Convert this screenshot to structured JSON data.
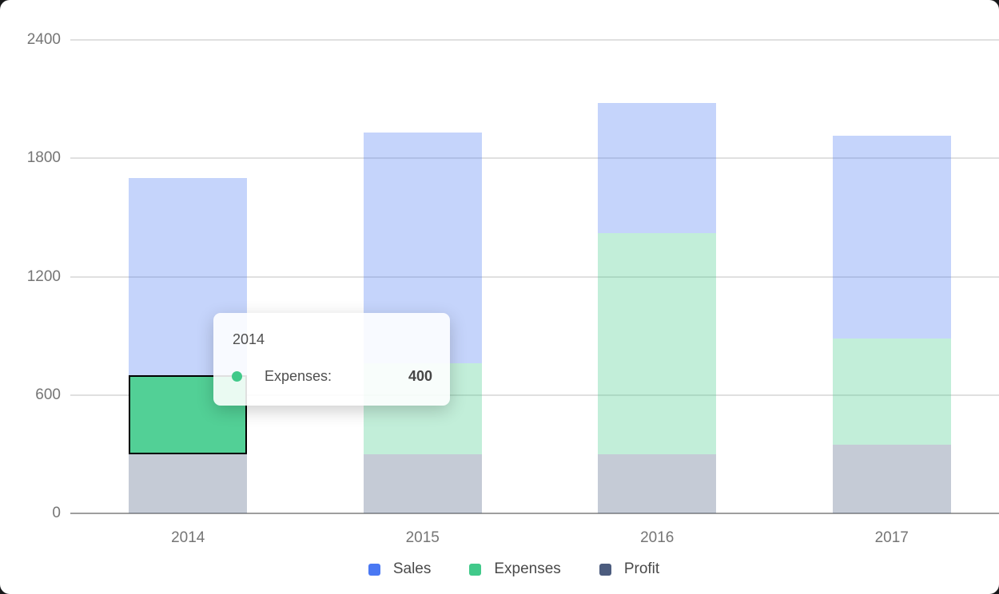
{
  "canvas": {
    "outside_background": "#17181a",
    "card_background": "#ffffff"
  },
  "chart_data": {
    "type": "bar",
    "stacked": true,
    "title": "",
    "xlabel": "",
    "ylabel": "",
    "categories": [
      "2014",
      "2015",
      "2016",
      "2017"
    ],
    "series": [
      {
        "name": "Sales",
        "color": "#4a78f3",
        "values": [
          1000,
          1170,
          660,
          1030
        ]
      },
      {
        "name": "Expenses",
        "color": "#41c98a",
        "values": [
          400,
          460,
          1120,
          540
        ]
      },
      {
        "name": "Profit",
        "color": "#4c5c7e",
        "values": [
          300,
          300,
          300,
          350
        ]
      }
    ],
    "stack_order_bottom_to_top": [
      "Profit",
      "Expenses",
      "Sales"
    ],
    "ylim": [
      0,
      2400
    ],
    "yticks": [
      0,
      600,
      1200,
      1800,
      2400
    ],
    "grid": true,
    "grid_color": "#e0e0e0",
    "axis_line_color": "#9e9e9e",
    "axis_label_color": "#757575",
    "fill_opacity": 0.32,
    "legend_position": "bottom",
    "emphasis": {
      "category": "2014",
      "series": "Expenses",
      "fill": "#52d096",
      "border_color": "#000000"
    }
  },
  "tooltip": {
    "title": "2014",
    "label": "Expenses:",
    "value": "400",
    "marker_color": "#41c98a"
  },
  "legend": {
    "text_color": "#4a4a4a",
    "items": [
      {
        "label": "Sales",
        "color": "#4a78f3"
      },
      {
        "label": "Expenses",
        "color": "#41c98a"
      },
      {
        "label": "Profit",
        "color": "#4c5c7e"
      }
    ]
  }
}
